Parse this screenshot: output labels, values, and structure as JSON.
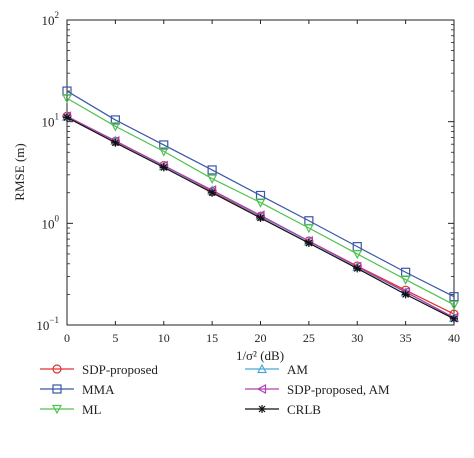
{
  "chart_data": {
    "type": "line",
    "title": "",
    "xlabel": "1/σ² (dB)",
    "ylabel": "RMSE (m)",
    "x": [
      0,
      5,
      10,
      15,
      20,
      25,
      30,
      35,
      40
    ],
    "xlim": [
      0,
      40
    ],
    "ylim": [
      0.1,
      100
    ],
    "yscale": "log",
    "grid": false,
    "legend_position": "below",
    "xticks": [
      "0",
      "5",
      "10",
      "15",
      "20",
      "25",
      "30",
      "35",
      "40"
    ],
    "yticks": [
      {
        "value": 0.1,
        "base": "10",
        "exp": "−1"
      },
      {
        "value": 1,
        "base": "10",
        "exp": "0"
      },
      {
        "value": 10,
        "base": "10",
        "exp": "1"
      },
      {
        "value": 100,
        "base": "10",
        "exp": "2"
      }
    ],
    "series": [
      {
        "name": "SDP-proposed",
        "color": "#e03030",
        "marker": "circle",
        "values": [
          11.3,
          6.4,
          3.7,
          2.05,
          1.17,
          0.67,
          0.38,
          0.22,
          0.128
        ]
      },
      {
        "name": "MMA",
        "color": "#3a56a8",
        "marker": "square",
        "values": [
          20.0,
          10.4,
          5.9,
          3.35,
          1.88,
          1.06,
          0.59,
          0.33,
          0.19
        ]
      },
      {
        "name": "ML",
        "color": "#4fc24f",
        "marker": "triangle-down",
        "values": [
          17.0,
          9.0,
          5.1,
          2.75,
          1.6,
          0.9,
          0.5,
          0.28,
          0.158
        ]
      },
      {
        "name": "AM",
        "color": "#4aa8d8",
        "marker": "triangle-up",
        "values": [
          11.2,
          6.5,
          3.65,
          2.1,
          1.18,
          0.665,
          0.372,
          0.21,
          0.118
        ]
      },
      {
        "name": "SDP-proposed, AM",
        "color": "#b040b0",
        "marker": "triangle-left",
        "values": [
          11.3,
          6.45,
          3.7,
          2.12,
          1.2,
          0.67,
          0.375,
          0.212,
          0.118
        ]
      },
      {
        "name": "CRLB",
        "color": "#111111",
        "marker": "star",
        "values": [
          11.0,
          6.2,
          3.55,
          2.0,
          1.13,
          0.64,
          0.36,
          0.2,
          0.115
        ]
      }
    ]
  }
}
